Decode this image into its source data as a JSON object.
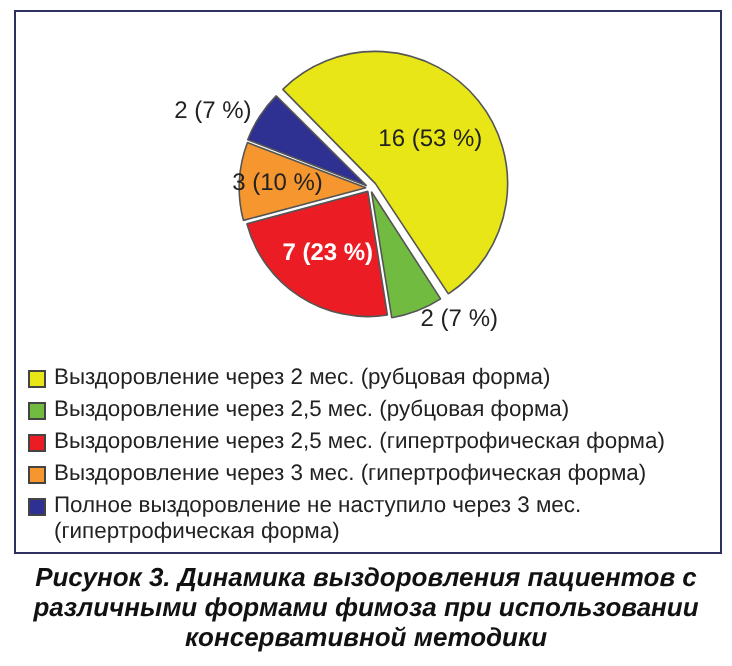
{
  "chart_data": {
    "type": "pie",
    "title": "Рисунок 3. Динамика выздоровления пациентов с различными формами фимоза при использовании консервативной методики",
    "categories": [
      "Выздоровление через 2 мес. (рубцовая форма)",
      "Выздоровление через 2,5 мес. (рубцовая форма)",
      "Выздоровление через 2,5 мес. (гипертрофическая форма)",
      "Выздоровление через 3 мес. (гипертрофическая форма)",
      "Полное выздоровление не наступило через 3 мес. (гипертрофическая форма)"
    ],
    "values": [
      16,
      2,
      7,
      3,
      2
    ],
    "value_labels": [
      "16 (53 %)",
      "2 (7 %)",
      "7 (23 %)",
      "3 (10 %)",
      "2 (7 %)"
    ],
    "colors": [
      "#e8e617",
      "#72bb41",
      "#ec1c24",
      "#f5962f",
      "#2e3192"
    ],
    "legend": "bottom"
  }
}
